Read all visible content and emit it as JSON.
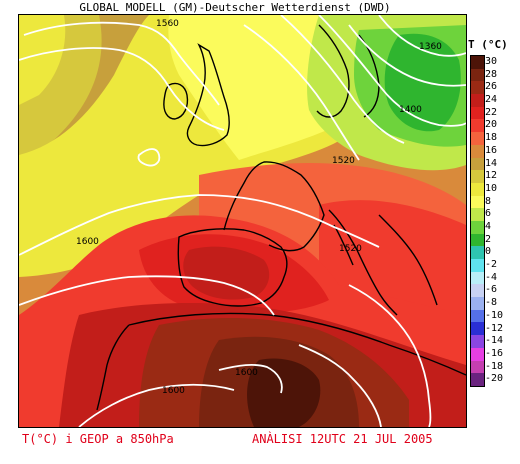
{
  "header": {
    "title": "GLOBAL MODELL (GM)-Deutscher Wetterdienst (DWD)"
  },
  "legend": {
    "title": "T (°C)",
    "labels": [
      "30",
      "28",
      "26",
      "24",
      "22",
      "20",
      "18",
      "16",
      "14",
      "12",
      "10",
      "8",
      "6",
      "4",
      "2",
      "0",
      "-2",
      "-4",
      "-6",
      "-8",
      "-10",
      "-12",
      "-14",
      "-16",
      "-18",
      "-20"
    ],
    "colors": [
      "#4d1408",
      "#7a2410",
      "#9a2a14",
      "#c21e1a",
      "#e0221f",
      "#f03b2e",
      "#f4633d",
      "#d98a3b",
      "#c7a03c",
      "#d6c83d",
      "#ede83d",
      "#fbfb5c",
      "#c0e84a",
      "#6ed33c",
      "#2fb52f",
      "#2ec4b0",
      "#5fe3ef",
      "#b9eef8",
      "#c8d2f3",
      "#9bb1f0",
      "#5570e8",
      "#2a2fd4",
      "#8a46e3",
      "#e63fe3",
      "#c43fb0",
      "#6a237f"
    ]
  },
  "contours": {
    "labels": [
      "1560",
      "1360",
      "1400",
      "1520",
      "1600",
      "1520",
      "1600",
      "1600"
    ]
  },
  "footer": {
    "left": "T(°C) i GEOP a 850hPa",
    "right": "ANÀLISI 12UTC 21 JUL 2005"
  }
}
